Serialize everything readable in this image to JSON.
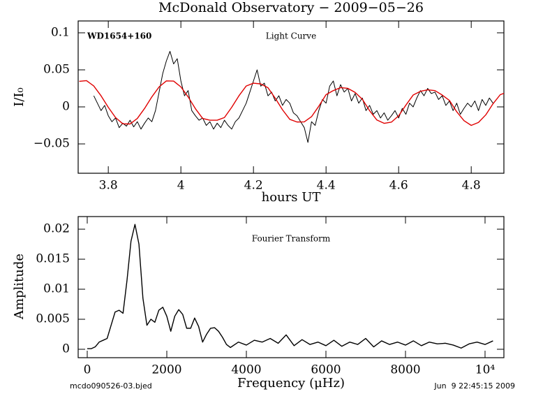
{
  "chart_data": [
    {
      "type": "line",
      "title": "McDonald Observatory − 2009−05−26",
      "xlabel": "hours UT",
      "ylabel": "I/I₀",
      "annotations": [
        "WD1654+160",
        "Light Curve"
      ],
      "xlim": [
        3.717,
        4.89
      ],
      "ylim": [
        -0.0896,
        0.116
      ],
      "xticks": [
        3.8,
        4,
        4.2,
        4.4,
        4.6,
        4.8
      ],
      "yticks": [
        {
          "value": -0.05,
          "label": "−0.05"
        },
        0,
        0.05,
        0.1
      ],
      "series": [
        {
          "color": "#000000",
          "x": [
            3.76,
            3.77,
            3.78,
            3.79,
            3.8,
            3.81,
            3.82,
            3.83,
            3.84,
            3.85,
            3.86,
            3.87,
            3.88,
            3.89,
            3.9,
            3.91,
            3.92,
            3.93,
            3.94,
            3.95,
            3.96,
            3.97,
            3.98,
            3.99,
            4,
            4.01,
            4.02,
            4.03,
            4.04,
            4.05,
            4.06,
            4.07,
            4.08,
            4.09,
            4.1,
            4.11,
            4.12,
            4.13,
            4.14,
            4.15,
            4.16,
            4.17,
            4.18,
            4.19,
            4.2,
            4.21,
            4.22,
            4.23,
            4.24,
            4.25,
            4.26,
            4.27,
            4.28,
            4.29,
            4.3,
            4.31,
            4.32,
            4.33,
            4.34,
            4.35,
            4.36,
            4.37,
            4.38,
            4.39,
            4.4,
            4.41,
            4.42,
            4.43,
            4.44,
            4.45,
            4.46,
            4.47,
            4.48,
            4.49,
            4.5,
            4.51,
            4.52,
            4.53,
            4.54,
            4.55,
            4.56,
            4.57,
            4.58,
            4.59,
            4.6,
            4.61,
            4.62,
            4.63,
            4.64,
            4.65,
            4.66,
            4.67,
            4.68,
            4.69,
            4.7,
            4.71,
            4.72,
            4.73,
            4.74,
            4.75,
            4.76,
            4.77,
            4.78,
            4.79,
            4.8,
            4.81,
            4.82,
            4.83,
            4.84,
            4.85,
            4.86
          ],
          "values": [
            0.015,
            0.005,
            -0.005,
            0.002,
            -0.012,
            -0.02,
            -0.015,
            -0.028,
            -0.022,
            -0.026,
            -0.018,
            -0.027,
            -0.02,
            -0.03,
            -0.022,
            -0.015,
            -0.02,
            -0.005,
            0.02,
            0.045,
            0.062,
            0.075,
            0.058,
            0.065,
            0.035,
            0.015,
            0.022,
            -0.005,
            -0.012,
            -0.018,
            -0.015,
            -0.025,
            -0.02,
            -0.03,
            -0.022,
            -0.028,
            -0.018,
            -0.025,
            -0.03,
            -0.02,
            -0.015,
            -0.005,
            0.005,
            0.02,
            0.035,
            0.05,
            0.028,
            0.032,
            0.015,
            0.02,
            0.008,
            0.015,
            0.002,
            0.01,
            0.005,
            -0.008,
            -0.012,
            -0.02,
            -0.028,
            -0.048,
            -0.02,
            -0.025,
            -0.005,
            0.01,
            0.005,
            0.028,
            0.035,
            0.015,
            0.03,
            0.02,
            0.025,
            0.008,
            0.018,
            0.005,
            0.012,
            -0.005,
            0.002,
            -0.01,
            -0.005,
            -0.015,
            -0.008,
            -0.018,
            -0.012,
            -0.005,
            -0.015,
            -0.002,
            -0.01,
            0.005,
            0,
            0.012,
            0.022,
            0.015,
            0.025,
            0.018,
            0.02,
            0.01,
            0.015,
            0.002,
            0.008,
            -0.005,
            0.005,
            -0.01,
            -0.002,
            0.005,
            0,
            0.008,
            -0.005,
            0.01,
            0.002,
            0.012,
            0.005
          ]
        },
        {
          "color": "#e00000",
          "x": [
            3.72,
            3.74,
            3.76,
            3.78,
            3.8,
            3.82,
            3.84,
            3.86,
            3.88,
            3.9,
            3.92,
            3.94,
            3.96,
            3.98,
            4,
            4.02,
            4.04,
            4.06,
            4.08,
            4.1,
            4.12,
            4.14,
            4.16,
            4.18,
            4.2,
            4.22,
            4.24,
            4.26,
            4.28,
            4.3,
            4.32,
            4.34,
            4.36,
            4.38,
            4.4,
            4.42,
            4.44,
            4.46,
            4.48,
            4.5,
            4.52,
            4.54,
            4.56,
            4.58,
            4.6,
            4.62,
            4.64,
            4.66,
            4.68,
            4.7,
            4.72,
            4.74,
            4.76,
            4.78,
            4.8,
            4.82,
            4.84,
            4.86,
            4.88,
            4.9
          ],
          "values": [
            0.0345,
            0.0354,
            0.0282,
            0.015,
            -0.0006,
            -0.0144,
            -0.0228,
            -0.0231,
            -0.0156,
            -0.0021,
            0.0135,
            0.027,
            0.0351,
            0.0348,
            0.027,
            0.0135,
            -0.0024,
            -0.0156,
            -0.018,
            -0.018,
            -0.0144,
            -0.0006,
            0.015,
            0.0282,
            0.032,
            0.031,
            0.0258,
            0.0117,
            -0.0039,
            -0.0168,
            -0.0204,
            -0.0202,
            -0.0132,
            0.0009,
            0.0165,
            0.022,
            0.026,
            0.025,
            0.0196,
            0.0102,
            -0.0051,
            -0.0177,
            -0.0222,
            -0.0206,
            -0.012,
            0.0024,
            0.016,
            0.021,
            0.023,
            0.022,
            0.016,
            0.0087,
            -0.0066,
            -0.0186,
            -0.025,
            -0.021,
            -0.0108,
            0.0042,
            0.0165,
            0.02
          ]
        }
      ]
    },
    {
      "type": "line",
      "xlabel": "Frequency (μHz)",
      "ylabel": "Amplitude",
      "annotations": [
        "Fourier Transform"
      ],
      "xlim": [
        -228,
        10474
      ],
      "ylim": [
        -0.0014,
        0.0221
      ],
      "xticks": [
        0,
        2000,
        4000,
        6000,
        8000,
        {
          "value": 10000,
          "label": "10⁴"
        }
      ],
      "yticks": [
        0,
        0.005,
        0.01,
        0.015,
        0.02
      ],
      "series": [
        {
          "color": "#000000",
          "x": [
            0,
            100,
            200,
            300,
            400,
            500,
            600,
            700,
            800,
            900,
            1000,
            1100,
            1200,
            1300,
            1400,
            1500,
            1600,
            1700,
            1800,
            1900,
            2000,
            2100,
            2200,
            2300,
            2400,
            2500,
            2600,
            2700,
            2800,
            2900,
            3000,
            3100,
            3200,
            3300,
            3400,
            3500,
            3600,
            3800,
            4000,
            4200,
            4400,
            4600,
            4800,
            5000,
            5200,
            5400,
            5600,
            5800,
            6000,
            6200,
            6400,
            6600,
            6800,
            7000,
            7200,
            7400,
            7600,
            7800,
            8000,
            8200,
            8400,
            8600,
            8800,
            9000,
            9200,
            9400,
            9600,
            9800,
            10000,
            10200
          ],
          "values": [
            0.0001,
            0.0001,
            0.0004,
            0.0012,
            0.0015,
            0.0018,
            0.004,
            0.0062,
            0.0065,
            0.006,
            0.0115,
            0.018,
            0.0208,
            0.0175,
            0.0085,
            0.004,
            0.005,
            0.0045,
            0.0065,
            0.007,
            0.0055,
            0.003,
            0.0055,
            0.0066,
            0.0058,
            0.0035,
            0.0035,
            0.0052,
            0.0038,
            0.0012,
            0.0025,
            0.0035,
            0.0036,
            0.003,
            0.002,
            0.0008,
            0.0003,
            0.0012,
            0.0007,
            0.0015,
            0.0012,
            0.0018,
            0.001,
            0.0024,
            0.0006,
            0.0016,
            0.0008,
            0.0012,
            0.0006,
            0.0015,
            0.0005,
            0.0012,
            0.0008,
            0.0018,
            0.0004,
            0.0014,
            0.0008,
            0.0012,
            0.0007,
            0.0014,
            0.0006,
            0.0012,
            0.0009,
            0.001,
            0.0007,
            0.0002,
            0.0009,
            0.0012,
            0.0008,
            0.0014
          ]
        }
      ]
    }
  ],
  "footer": {
    "left": "mcdo090526-03.bjed",
    "right": "Jun  9 22:45:15 2009"
  }
}
